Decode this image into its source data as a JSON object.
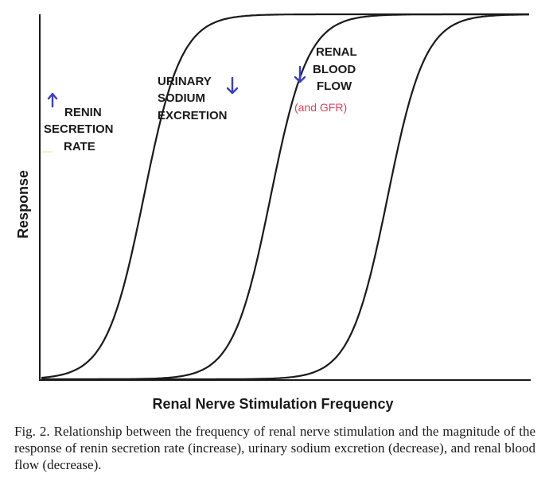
{
  "chart_data": {
    "type": "line",
    "xlabel": "Renal Nerve Stimulation Frequency",
    "ylabel": "Response",
    "grid": false,
    "series": [
      {
        "label_lines": [
          "RENIN",
          "SECRETION",
          "RATE"
        ],
        "direction": "up",
        "midpoint": 0.21
      },
      {
        "label_lines": [
          "URINARY",
          "SODIUM",
          "EXCRETION"
        ],
        "direction": "down",
        "midpoint": 0.47
      },
      {
        "label_lines": [
          "RENAL",
          "BLOOD",
          "FLOW"
        ],
        "direction": "down",
        "note": "(and GFR)",
        "midpoint": 0.71
      }
    ],
    "colors": {
      "curve": "#1a1a1a",
      "arrow": "#3a3fc4",
      "note": "#e0405a"
    }
  },
  "caption": "Fig. 2.  Relationship between the frequency of renal nerve stimulation and the magnitude of the response of renin secretion rate (increase), urinary sodium excretion (decrease), and renal blood flow (decrease)."
}
